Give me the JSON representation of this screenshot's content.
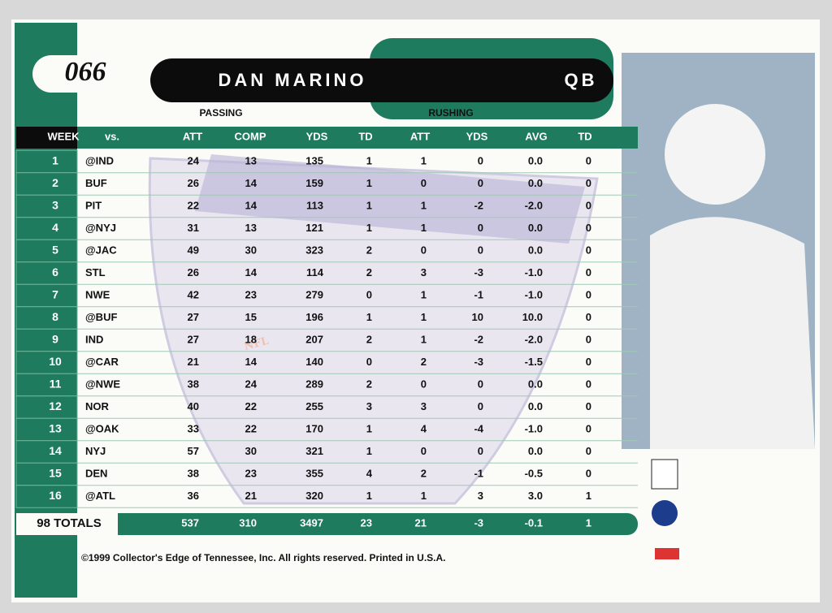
{
  "card": {
    "number": "066",
    "name": "DAN MARINO",
    "position": "QB"
  },
  "table": {
    "groups": [
      "PASSING",
      "RUSHING"
    ],
    "columns": [
      "WEEK",
      "vs.",
      "ATT",
      "COMP",
      "YDS",
      "TD",
      "ATT",
      "YDS",
      "AVG",
      "TD"
    ],
    "rows": [
      [
        "1",
        "@IND",
        "24",
        "13",
        "135",
        "1",
        "1",
        "0",
        "0.0",
        "0"
      ],
      [
        "2",
        "BUF",
        "26",
        "14",
        "159",
        "1",
        "0",
        "0",
        "0.0",
        "0"
      ],
      [
        "3",
        "PIT",
        "22",
        "14",
        "113",
        "1",
        "1",
        "-2",
        "-2.0",
        "0"
      ],
      [
        "4",
        "@NYJ",
        "31",
        "13",
        "121",
        "1",
        "1",
        "0",
        "0.0",
        "0"
      ],
      [
        "5",
        "@JAC",
        "49",
        "30",
        "323",
        "2",
        "0",
        "0",
        "0.0",
        "0"
      ],
      [
        "6",
        "STL",
        "26",
        "14",
        "114",
        "2",
        "3",
        "-3",
        "-1.0",
        "0"
      ],
      [
        "7",
        "NWE",
        "42",
        "23",
        "279",
        "0",
        "1",
        "-1",
        "-1.0",
        "0"
      ],
      [
        "8",
        "@BUF",
        "27",
        "15",
        "196",
        "1",
        "1",
        "10",
        "10.0",
        "0"
      ],
      [
        "9",
        "IND",
        "27",
        "18",
        "207",
        "2",
        "1",
        "-2",
        "-2.0",
        "0"
      ],
      [
        "10",
        "@CAR",
        "21",
        "14",
        "140",
        "0",
        "2",
        "-3",
        "-1.5",
        "0"
      ],
      [
        "11",
        "@NWE",
        "38",
        "24",
        "289",
        "2",
        "0",
        "0",
        "0.0",
        "0"
      ],
      [
        "12",
        "NOR",
        "40",
        "22",
        "255",
        "3",
        "3",
        "0",
        "0.0",
        "0"
      ],
      [
        "13",
        "@OAK",
        "33",
        "22",
        "170",
        "1",
        "4",
        "-4",
        "-1.0",
        "0"
      ],
      [
        "14",
        "NYJ",
        "57",
        "30",
        "321",
        "1",
        "0",
        "0",
        "0.0",
        "0"
      ],
      [
        "15",
        "DEN",
        "38",
        "23",
        "355",
        "4",
        "2",
        "-1",
        "-0.5",
        "0"
      ],
      [
        "16",
        "@ATL",
        "36",
        "21",
        "320",
        "1",
        "1",
        "3",
        "3.0",
        "1"
      ]
    ],
    "totals": [
      "98 TOTALS",
      "537",
      "310",
      "3497",
      "23",
      "21",
      "-3",
      "-0.1",
      "1"
    ]
  },
  "footer": {
    "copyright": "©1999 Collector's Edge of Tennessee, Inc. All rights reserved. Printed in U.S.A."
  }
}
